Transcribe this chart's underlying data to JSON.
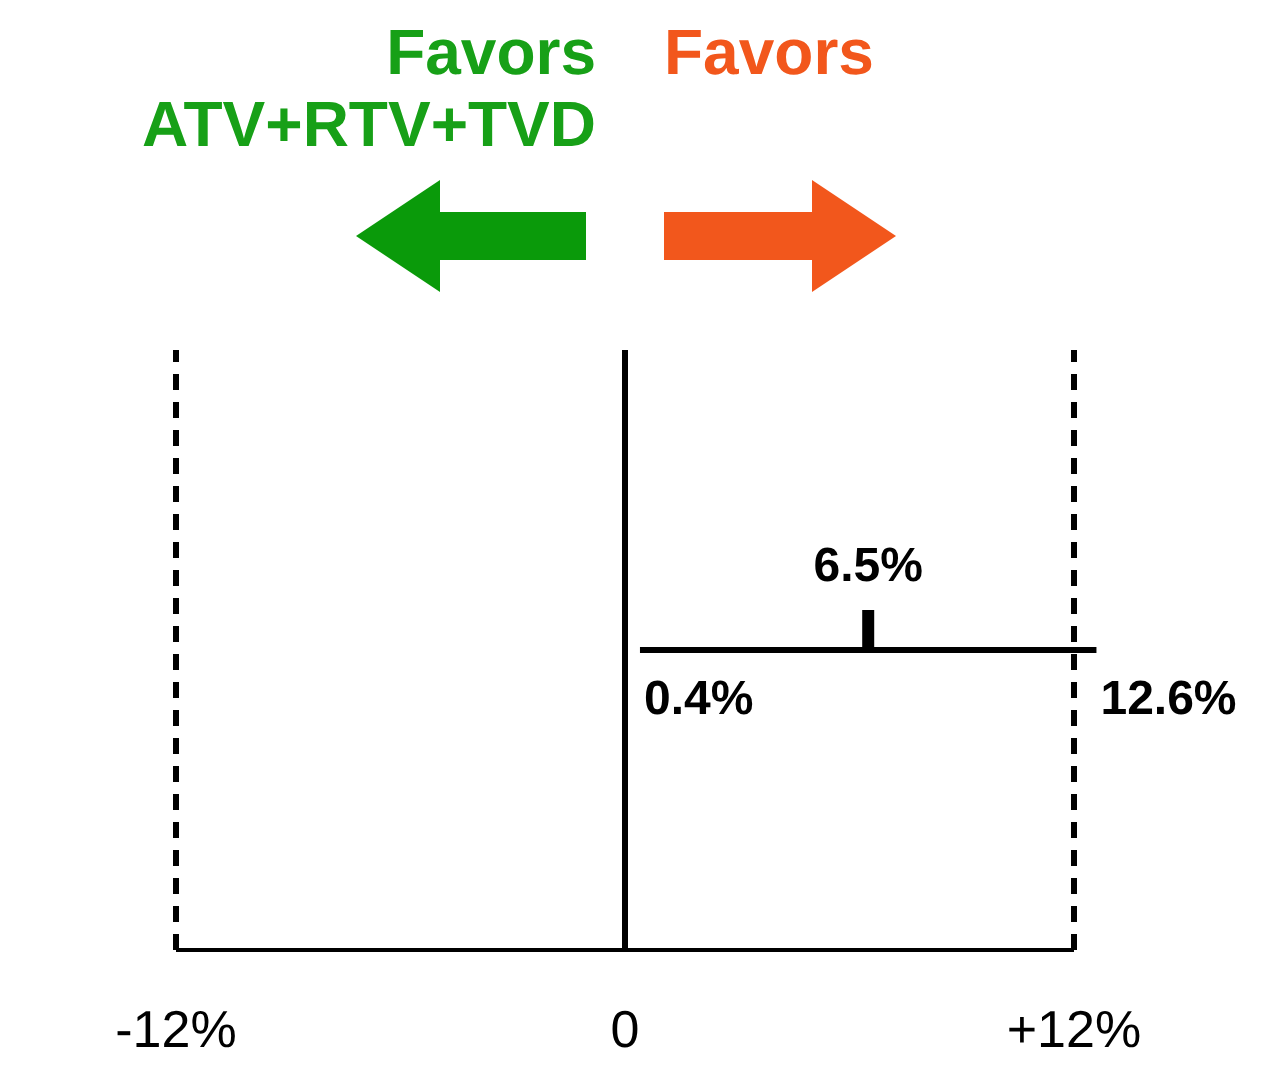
{
  "chart_data": {
    "type": "scatter",
    "orientation": "horizontal",
    "categories": [
      null
    ],
    "values": [
      6.5
    ],
    "errors": [
      [
        0.4,
        12.6
      ]
    ],
    "value_labels": [
      "6.5%"
    ],
    "color": "#000000",
    "xlim": [
      -12,
      12
    ],
    "xticks": [
      {
        "value": -12,
        "label": "-12%"
      },
      0,
      {
        "value": 12,
        "label": "+12%"
      }
    ],
    "tick_labels": "x",
    "ref_lines": [
      {
        "axis": "x",
        "value": -12,
        "line_style": "dashed"
      },
      {
        "axis": "x",
        "value": 0,
        "line_style": "solid"
      },
      {
        "axis": "x",
        "value": 12,
        "line_style": "dashed"
      }
    ],
    "annotations": [
      "Favors ATV+RTV+TVD",
      "Favors",
      "0.4%",
      "12.6%"
    ]
  }
}
